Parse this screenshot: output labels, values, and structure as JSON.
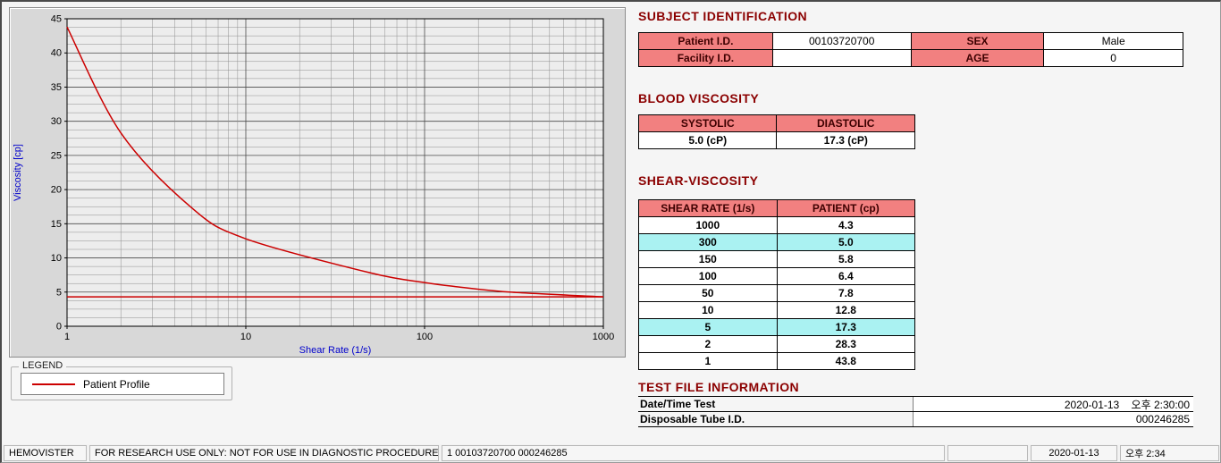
{
  "colors": {
    "heading": "#8B0000",
    "header_bg": "#F28080",
    "highlight_bg": "#AAF2F2",
    "curve": "#CC0000",
    "axis_label": "#0000CC"
  },
  "chart_data": {
    "type": "line",
    "title": "",
    "xlabel": "Shear Rate (1/s)",
    "ylabel": "Viscosity [cp]",
    "x_scale": "log",
    "xlim": [
      1,
      1000
    ],
    "ylim": [
      0,
      45
    ],
    "y_tick_step": 5,
    "x_ticks": [
      1,
      10,
      100,
      1000
    ],
    "grid": "on",
    "series": [
      {
        "name": "Patient Profile",
        "color": "#CC0000",
        "x": [
          1,
          2,
          5,
          10,
          50,
          100,
          150,
          300,
          1000
        ],
        "y": [
          43.8,
          28.3,
          17.3,
          12.8,
          7.8,
          6.4,
          5.8,
          5.0,
          4.3
        ]
      }
    ],
    "reference_line": {
      "y": 4.3,
      "color": "#CC0000"
    },
    "legend_position": "below-left"
  },
  "legend": {
    "title": "LEGEND",
    "entry": "Patient Profile"
  },
  "subject": {
    "heading": "SUBJECT IDENTIFICATION",
    "rows": [
      {
        "l1": "Patient I.D.",
        "v1": "00103720700",
        "l2": "SEX",
        "v2": "Male"
      },
      {
        "l1": "Facility I.D.",
        "v1": "",
        "l2": "AGE",
        "v2": "0"
      }
    ]
  },
  "blood_viscosity": {
    "heading": "BLOOD VISCOSITY",
    "columns": [
      "SYSTOLIC",
      "DIASTOLIC"
    ],
    "values": [
      "5.0 (cP)",
      "17.3 (cP)"
    ]
  },
  "shear_viscosity": {
    "heading": "SHEAR-VISCOSITY",
    "columns": [
      "SHEAR RATE (1/s)",
      "PATIENT (cp)"
    ],
    "rows": [
      {
        "rate": "1000",
        "value": "4.3",
        "highlight": false
      },
      {
        "rate": "300",
        "value": "5.0",
        "highlight": true
      },
      {
        "rate": "150",
        "value": "5.8",
        "highlight": false
      },
      {
        "rate": "100",
        "value": "6.4",
        "highlight": false
      },
      {
        "rate": "50",
        "value": "7.8",
        "highlight": false
      },
      {
        "rate": "10",
        "value": "12.8",
        "highlight": false
      },
      {
        "rate": "5",
        "value": "17.3",
        "highlight": true
      },
      {
        "rate": "2",
        "value": "28.3",
        "highlight": false
      },
      {
        "rate": "1",
        "value": "43.8",
        "highlight": false
      }
    ]
  },
  "test_file": {
    "heading": "TEST FILE INFORMATION",
    "rows": [
      {
        "label": "Date/Time Test",
        "value": "2020-01-13    오후 2:30:00"
      },
      {
        "label": "Disposable Tube I.D.",
        "value": "000246285"
      }
    ]
  },
  "status_bar": {
    "app_name": "HEMOVISTER",
    "notice": "FOR RESEARCH USE ONLY: NOT FOR USE IN DIAGNOSTIC PROCEDURES",
    "record": "1  00103720700  000246285",
    "date": "2020-01-13",
    "time": "오후 2:34"
  }
}
